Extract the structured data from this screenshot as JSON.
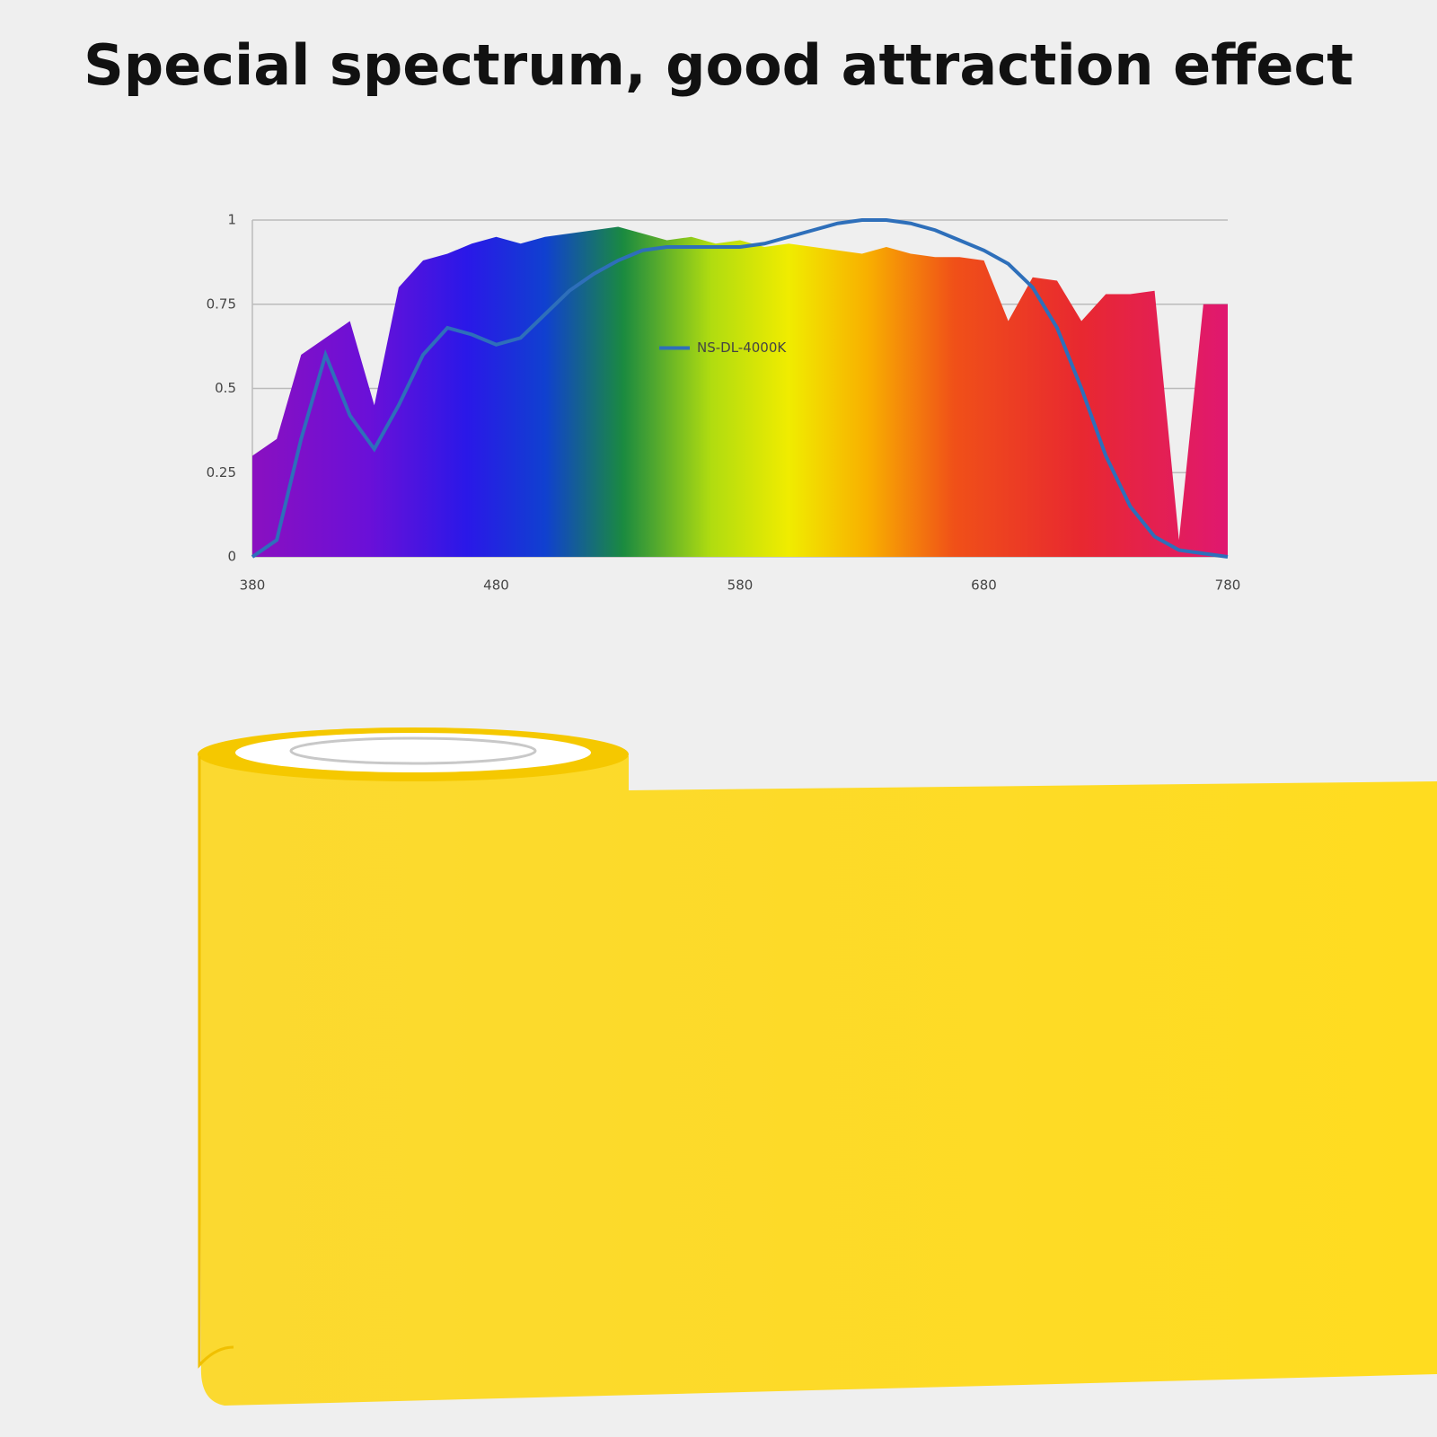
{
  "title": "Special spectrum, good attraction effect",
  "chart_data": {
    "type": "line",
    "x": [
      380,
      390,
      400,
      410,
      420,
      430,
      440,
      450,
      460,
      470,
      480,
      490,
      500,
      510,
      520,
      530,
      540,
      550,
      560,
      570,
      580,
      590,
      600,
      610,
      620,
      630,
      640,
      650,
      660,
      670,
      680,
      690,
      700,
      710,
      720,
      730,
      740,
      750,
      760,
      770,
      780
    ],
    "series": [
      {
        "name": "NS-DL-4000K",
        "color": "#2e6fba",
        "values": [
          0,
          0.05,
          0.35,
          0.6,
          0.42,
          0.32,
          0.45,
          0.6,
          0.68,
          0.66,
          0.63,
          0.65,
          0.72,
          0.79,
          0.84,
          0.88,
          0.91,
          0.92,
          0.92,
          0.92,
          0.92,
          0.93,
          0.95,
          0.97,
          0.99,
          1,
          1,
          0.99,
          0.97,
          0.94,
          0.91,
          0.87,
          0.8,
          0.68,
          0.5,
          0.3,
          0.15,
          0.06,
          0.02,
          0.01,
          0
        ]
      },
      {
        "type": "area",
        "values": [
          0.3,
          0.35,
          0.6,
          0.65,
          0.7,
          0.45,
          0.8,
          0.88,
          0.9,
          0.93,
          0.95,
          0.93,
          0.95,
          0.96,
          0.97,
          0.98,
          0.96,
          0.94,
          0.95,
          0.93,
          0.94,
          0.92,
          0.93,
          0.92,
          0.91,
          0.9,
          0.92,
          0.9,
          0.89,
          0.89,
          0.88,
          0.7,
          0.83,
          0.82,
          0.7,
          0.78,
          0.78,
          0.79,
          0.05,
          0.75,
          0.75
        ]
      }
    ],
    "xlim": [
      380,
      780
    ],
    "ylim": [
      0,
      1
    ],
    "xticks": [
      380,
      480,
      580,
      680,
      780
    ],
    "yticks": [
      0,
      0.25,
      0.5,
      0.75,
      1
    ],
    "grid": true,
    "legend": "center"
  }
}
